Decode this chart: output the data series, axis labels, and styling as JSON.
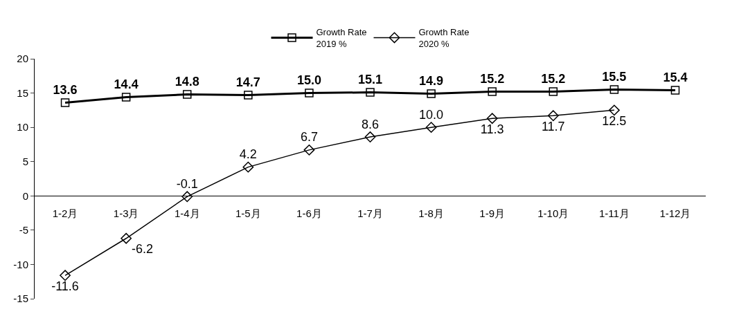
{
  "chart_data": {
    "type": "line",
    "categories": [
      "1-2月",
      "1-3月",
      "1-4月",
      "1-5月",
      "1-6月",
      "1-7月",
      "1-8月",
      "1-9月",
      "1-10月",
      "1-11月",
      "1-12月"
    ],
    "series": [
      {
        "name": "Growth Rate\n2019 %",
        "color": "#000000",
        "marker": "square",
        "values": [
          13.6,
          14.4,
          14.8,
          14.7,
          15.0,
          15.1,
          14.9,
          15.2,
          15.2,
          15.5,
          15.4
        ],
        "value_labels": [
          "13.6",
          "14.4",
          "14.8",
          "14.7",
          "15.0",
          "15.1",
          "14.9",
          "15.2",
          "15.2",
          "15.5",
          "15.4"
        ]
      },
      {
        "name": "Growth Rate\n2020 %",
        "color": "#000000",
        "marker": "diamond",
        "values": [
          -11.6,
          -6.2,
          -0.1,
          4.2,
          6.7,
          8.6,
          10.0,
          11.3,
          11.7,
          12.5,
          null
        ],
        "value_labels": [
          "-11.6",
          "-6.2",
          "-0.1",
          "4.2",
          "6.7",
          "8.6",
          "10.0",
          "11.3",
          "11.7",
          "12.5",
          null
        ]
      }
    ],
    "ylim": [
      -15,
      20
    ],
    "yticks": [
      -15,
      -10,
      -5,
      0,
      5,
      10,
      15,
      20
    ],
    "legend": "top",
    "line_style": "solid"
  }
}
